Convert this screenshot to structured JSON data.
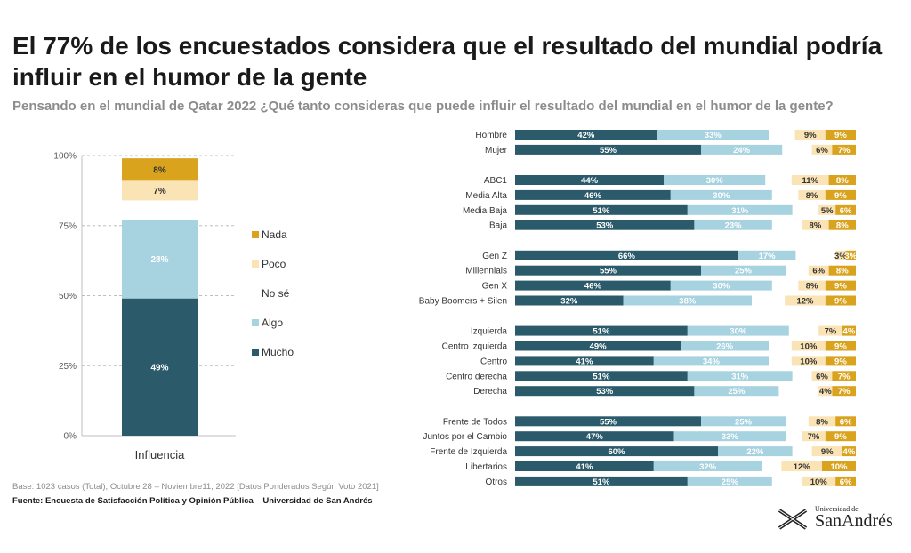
{
  "header": {
    "title": "El 77% de los encuestados considera que el resultado del mundial podría influir en el humor de la gente",
    "subtitle": "Pensando en el mundial de Qatar 2022 ¿Qué tanto consideras que puede influir el resultado del mundial en el humor de la gente?"
  },
  "footer": {
    "base": "Base: 1023 casos (Total), Octubre 28 – Noviembre11,  2022 [Datos Ponderados Según Voto 2021]",
    "source": "Fuente: Encuesta de Satisfacción Política y Opinión Pública – Universidad de San Andrés"
  },
  "logo": {
    "small": "Universidad de",
    "big": "SanAndrés"
  },
  "colors": {
    "mucho": "#2b5a6b",
    "algo": "#a7d2e0",
    "nose": "#ffffff",
    "poco": "#fae3b4",
    "nada": "#d9a31e"
  },
  "chart_data": [
    {
      "type": "bar",
      "stacked": true,
      "categories": [
        "Influencia"
      ],
      "ylim": [
        0,
        100
      ],
      "yticks": [
        "0%",
        "25%",
        "50%",
        "75%",
        "100%"
      ],
      "grid": true,
      "legend_position": "right",
      "series": [
        {
          "name": "Mucho",
          "values": [
            49
          ],
          "labels": [
            "49%"
          ]
        },
        {
          "name": "Algo",
          "values": [
            28
          ],
          "labels": [
            "28%"
          ]
        },
        {
          "name": "No sé",
          "values": [
            7
          ],
          "labels": [
            ""
          ]
        },
        {
          "name": "Poco",
          "values": [
            7
          ],
          "labels": [
            "7%"
          ]
        },
        {
          "name": "Nada",
          "values": [
            8
          ],
          "labels": [
            "8%"
          ]
        }
      ]
    },
    {
      "type": "bar",
      "orientation": "horizontal",
      "stacked": true,
      "xlim": [
        0,
        100
      ],
      "groups": [
        {
          "categories": [
            "Hombre",
            "Mujer"
          ]
        },
        {
          "categories": [
            "ABC1",
            "Media Alta",
            "Media Baja",
            "Baja"
          ]
        },
        {
          "categories": [
            "Gen Z",
            "Millennials",
            "Gen X",
            "Baby Boomers + Silen"
          ]
        },
        {
          "categories": [
            "Izquierda",
            "Centro izquierda",
            "Centro",
            "Centro derecha",
            "Derecha"
          ]
        },
        {
          "categories": [
            "Frente de Todos",
            "Juntos por el Cambio",
            "Frente de Izquierda",
            "Libertarios",
            "Otros"
          ]
        }
      ],
      "series": [
        {
          "name": "Mucho",
          "values": [
            42,
            55,
            44,
            46,
            51,
            53,
            66,
            55,
            46,
            32,
            51,
            49,
            41,
            51,
            53,
            55,
            47,
            60,
            41,
            51
          ]
        },
        {
          "name": "Algo",
          "values": [
            33,
            24,
            30,
            30,
            31,
            23,
            17,
            25,
            30,
            38,
            30,
            26,
            34,
            31,
            25,
            25,
            33,
            22,
            32,
            25
          ]
        },
        {
          "name": "Poco",
          "values": [
            9,
            6,
            11,
            8,
            5,
            8,
            3,
            6,
            8,
            12,
            7,
            10,
            10,
            6,
            4,
            8,
            7,
            9,
            12,
            10
          ]
        },
        {
          "name": "Nada",
          "values": [
            9,
            7,
            8,
            9,
            6,
            8,
            3,
            8,
            9,
            9,
            4,
            9,
            9,
            7,
            7,
            6,
            9,
            4,
            10,
            6
          ]
        }
      ]
    }
  ]
}
